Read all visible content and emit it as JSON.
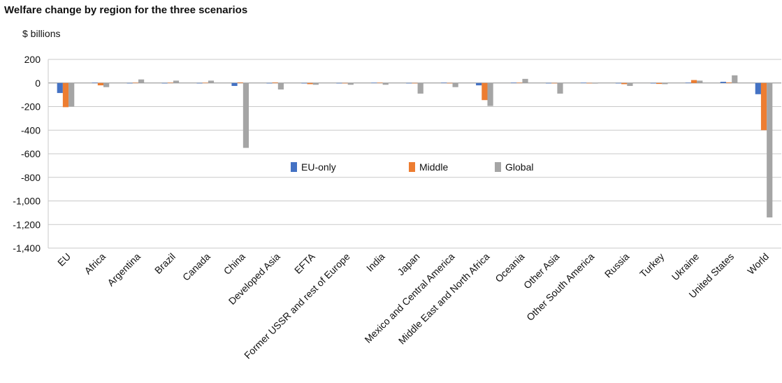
{
  "chart_data": {
    "type": "bar",
    "title": "Welfare change by region for the three scenarios",
    "ylabel": "$ billions",
    "xlabel": "",
    "ylim": [
      -1400,
      200
    ],
    "yticks": [
      200,
      0,
      -200,
      -400,
      -600,
      -800,
      -1000,
      -1200,
      -1400
    ],
    "ytick_labels": [
      "200",
      "0",
      "-200",
      "-400",
      "-600",
      "-800",
      "-1,000",
      "-1,200",
      "-1,400"
    ],
    "grid": true,
    "legend_position": "center",
    "categories": [
      "EU",
      "Africa",
      "Argentina",
      "Brazil",
      "Canada",
      "China",
      "Developed Asia",
      "EFTA",
      "Former USSR and rest of Europe",
      "India",
      "Japan",
      "Mexico and Central America",
      "Middle East and North Africa",
      "Oceania",
      "Other Asia",
      "Other South America",
      "Russia",
      "Turkey",
      "Ukraine",
      "United States",
      "World"
    ],
    "series": [
      {
        "name": "EU-only",
        "color": "#4472c4",
        "values": [
          -85,
          3,
          -2,
          -3,
          -2,
          -25,
          -3,
          -2,
          -3,
          2,
          -2,
          3,
          -20,
          3,
          -2,
          2,
          -2,
          -3,
          3,
          10,
          -95
        ]
      },
      {
        "name": "Middle",
        "color": "#ed7d31",
        "values": [
          -205,
          -20,
          3,
          3,
          2,
          5,
          5,
          -10,
          -3,
          3,
          -3,
          -2,
          -145,
          3,
          -3,
          -2,
          -10,
          -8,
          25,
          5,
          -400
        ]
      },
      {
        "name": "Global",
        "color": "#a5a5a5",
        "values": [
          -200,
          -35,
          30,
          20,
          20,
          -550,
          -55,
          -15,
          -15,
          -15,
          -90,
          -35,
          -195,
          35,
          -90,
          -5,
          -25,
          -10,
          20,
          65,
          -1140
        ]
      }
    ]
  }
}
